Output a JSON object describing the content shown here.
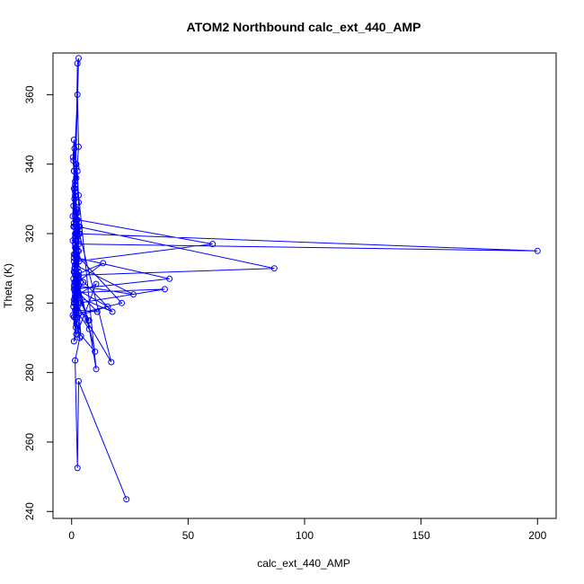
{
  "colors": {
    "series": "#0000ff",
    "axis": "#000000",
    "background": "#ffffff"
  },
  "chart_data": {
    "type": "line",
    "title": "ATOM2 Northbound calc_ext_440_AMP",
    "xlabel": "calc_ext_440_AMP",
    "ylabel": "Theta (K)",
    "xlim": [
      -8,
      208
    ],
    "ylim": [
      238,
      372
    ],
    "grid": false,
    "markers": "open-circle",
    "x_ticks": [
      0,
      50,
      100,
      150,
      200
    ],
    "y_ticks": [
      240,
      260,
      280,
      300,
      320,
      340,
      360
    ],
    "x_tick_labels": [
      "0",
      "50",
      "100",
      "150",
      "200"
    ],
    "y_tick_labels": [
      "240",
      "260",
      "280",
      "300",
      "320",
      "340",
      "360"
    ],
    "series": [
      {
        "x": [
          23.5,
          3.0,
          2.5,
          1.5,
          3.5,
          2.0,
          1.0,
          2.5,
          1.5,
          0.8,
          1.2,
          2.0,
          3.0,
          2.5,
          1.0,
          0.5,
          1.5,
          2.0,
          3.0,
          4.0,
          2.5,
          1.8,
          1.0,
          2.2,
          3.5,
          2.0,
          1.5,
          0.8,
          1.2,
          2.0,
          3.0,
          10.5,
          7.0,
          2.0,
          1.0,
          0.5,
          1.5,
          17.0,
          2.0,
          3.0,
          2.5,
          1.2,
          0.8,
          1.5,
          2.0,
          1.0,
          0.6,
          1.5,
          2.2,
          3.0,
          200.0,
          1.5,
          2.0,
          1.0,
          2.5,
          3.0,
          2.2,
          1.5,
          0.8,
          1.2,
          1.8,
          2.5,
          3.0,
          2.0,
          1.5,
          1.0,
          3.0,
          2.5,
          1.8,
          1.2,
          2.0,
          3.0,
          2.5,
          3.2,
          2.8,
          2.0,
          1.5,
          1.0,
          1.5,
          2.2,
          3.0,
          2.0,
          1.2,
          0.8,
          1.5,
          2.0,
          1.0,
          1.8,
          2.5,
          3.5,
          2.0,
          1.2,
          1.5,
          2.8,
          2.0,
          1.0,
          1.5,
          2.5,
          60.5,
          2.0,
          1.5,
          1.0,
          2.0,
          87.0,
          3.0,
          2.0,
          1.5,
          1.0,
          42.0,
          2.5,
          2.0,
          1.5,
          40.0,
          3.0,
          2.0,
          1.5,
          26.5,
          2.5,
          1.5,
          2.0,
          21.5,
          3.0,
          2.0,
          1.0,
          17.5,
          2.0,
          1.5,
          13.5,
          2.5,
          1.8,
          1.0,
          15.5,
          2.0,
          1.5,
          10.0,
          2.5,
          1.5,
          11.0,
          3.0,
          2.0,
          7.5,
          2.0,
          1.5,
          7.5,
          1.0,
          2.0,
          4.0,
          2.5,
          1.5,
          10.5,
          1.0,
          2.0,
          0.8,
          1.5,
          3.0,
          5.0,
          1.5,
          1.0,
          2.0,
          0.5,
          1.5,
          2.5
        ],
        "y": [
          243.5,
          277.5,
          252.5,
          283.5,
          290.0,
          295.5,
          305.0,
          310.0,
          316.0,
          322.0,
          330.0,
          336.0,
          345.0,
          360.0,
          338.0,
          325.0,
          318.0,
          312.0,
          308.0,
          300.0,
          296.0,
          302.0,
          309.0,
          314.0,
          320.0,
          327.0,
          333.0,
          341.0,
          344.5,
          339.0,
          331.0,
          281.0,
          295.0,
          305.0,
          312.0,
          318.0,
          325.0,
          283.0,
          300.0,
          308.0,
          315.0,
          322.0,
          328.0,
          335.0,
          340.0,
          347.0,
          342.0,
          331.0,
          324.0,
          317.0,
          315.0,
          320.0,
          326.0,
          333.0,
          338.0,
          329.0,
          321.0,
          314.0,
          307.0,
          300.0,
          293.0,
          299.0,
          305.0,
          311.0,
          317.0,
          323.0,
          370.5,
          369.0,
          340.0,
          330.0,
          322.0,
          315.0,
          308.0,
          312.0,
          318.0,
          324.0,
          332.0,
          338.0,
          334.0,
          327.0,
          320.0,
          313.0,
          306.0,
          299.0,
          303.0,
          308.0,
          314.0,
          320.0,
          326.0,
          322.0,
          316.0,
          310.0,
          305.0,
          300.0,
          307.0,
          313.0,
          319.0,
          324.0,
          317.0,
          312.0,
          306.0,
          301.0,
          308.0,
          310.0,
          322.0,
          318.0,
          311.0,
          304.0,
          307.0,
          313.0,
          309.0,
          303.0,
          304.0,
          300.0,
          306.0,
          311.0,
          302.5,
          305.0,
          309.0,
          314.0,
          300.0,
          297.0,
          303.0,
          309.0,
          297.5,
          302.0,
          308.0,
          311.5,
          306.0,
          301.0,
          296.0,
          299.0,
          304.0,
          310.0,
          286.0,
          292.0,
          298.0,
          297.5,
          303.0,
          308.0,
          292.5,
          298.0,
          304.0,
          295.0,
          300.0,
          306.0,
          290.5,
          296.0,
          302.0,
          305.5,
          289.0,
          294.0,
          299.0,
          304.0,
          309.0,
          306.0,
          301.0,
          296.0,
          291.0,
          296.5,
          302.0,
          307.0
        ]
      }
    ]
  }
}
